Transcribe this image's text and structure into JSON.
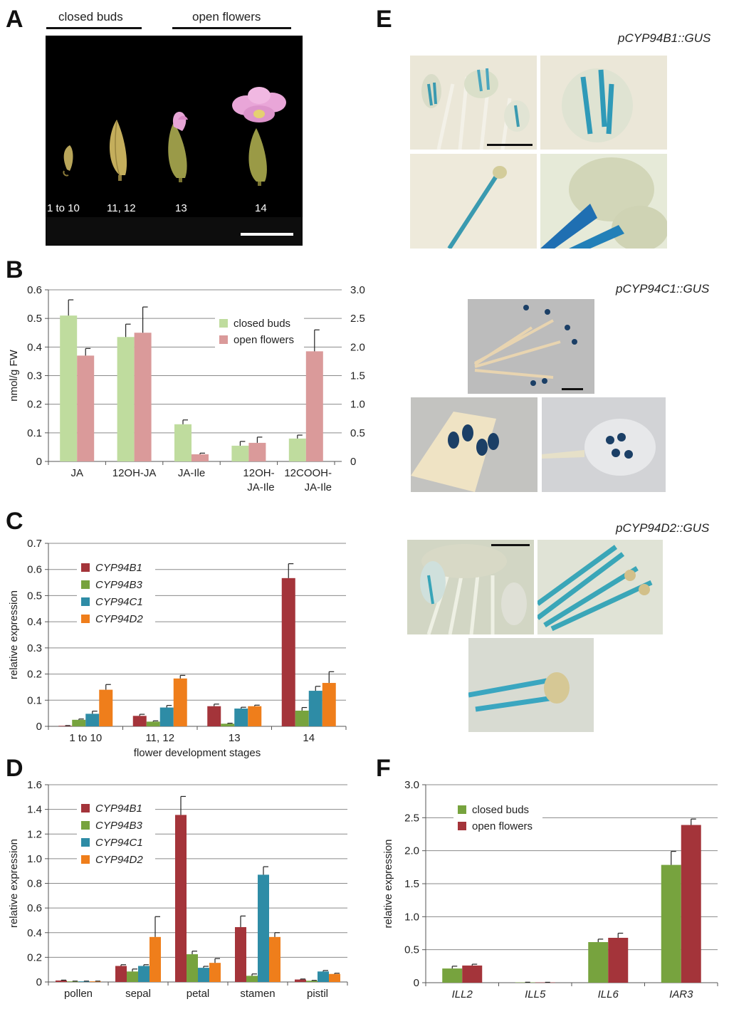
{
  "panels": {
    "a": {
      "letter": "A",
      "group_labels": [
        "closed buds",
        "open flowers"
      ],
      "stage_labels": [
        "1 to 10",
        "11, 12",
        "13",
        "14"
      ]
    },
    "b": {
      "letter": "B"
    },
    "c": {
      "letter": "C"
    },
    "d": {
      "letter": "D"
    },
    "e": {
      "letter": "E",
      "labels": [
        "pCYP94B1::GUS",
        "pCYP94C1::GUS",
        "pCYP94D2::GUS"
      ]
    },
    "f": {
      "letter": "F"
    }
  },
  "colors": {
    "closed_buds": "#bfdc9e",
    "open_flowers": "#da9a9a",
    "CYP94B1": "#a4343a",
    "CYP94B3": "#77a33e",
    "CYP94C1": "#2e8ca6",
    "CYP94D2": "#ef7e1b",
    "F_closed": "#77a33e",
    "F_open": "#a4343a"
  },
  "chart_data": [
    {
      "id": "B",
      "type": "bar",
      "categories": [
        "JA",
        "12OH-JA",
        "JA-Ile",
        "12OH-\nJA-Ile",
        "12COOH-\nJA-Ile"
      ],
      "series": [
        {
          "name": "closed buds",
          "values": [
            0.51,
            0.435,
            0.13,
            0.055,
            0.08
          ],
          "errors": [
            0.055,
            0.045,
            0.015,
            0.015,
            0.012
          ]
        },
        {
          "name": "open flowers",
          "values": [
            0.37,
            0.45,
            0.025,
            0.065,
            0.385
          ],
          "errors": [
            0.025,
            0.09,
            0.004,
            0.02,
            0.075
          ]
        }
      ],
      "ylabel": "nmol/g FW",
      "ylim": [
        0,
        0.6
      ],
      "yticks": [
        "0",
        "0.1",
        "0.2",
        "0.3",
        "0.4",
        "0.5",
        "0.6"
      ],
      "y2lim": [
        0,
        3.0
      ],
      "y2ticks": [
        "0",
        "0.5",
        "1.0",
        "1.5",
        "2.0",
        "2.5",
        "3.0"
      ],
      "secondary_axis_categories": [
        "12COOH-\nJA-Ile"
      ],
      "legend": "top-right",
      "grid": true
    },
    {
      "id": "C",
      "type": "bar",
      "categories": [
        "1 to 10",
        "11, 12",
        "13",
        "14"
      ],
      "series": [
        {
          "name": "CYP94B1",
          "values": [
            0.002,
            0.04,
            0.077,
            0.567
          ],
          "errors": [
            0.001,
            0.006,
            0.008,
            0.055
          ]
        },
        {
          "name": "CYP94B3",
          "values": [
            0.025,
            0.018,
            0.01,
            0.06
          ],
          "errors": [
            0.003,
            0.003,
            0.002,
            0.012
          ]
        },
        {
          "name": "CYP94C1",
          "values": [
            0.048,
            0.072,
            0.068,
            0.136
          ],
          "errors": [
            0.01,
            0.008,
            0.005,
            0.017
          ]
        },
        {
          "name": "CYP94D2",
          "values": [
            0.14,
            0.183,
            0.077,
            0.166
          ],
          "errors": [
            0.02,
            0.012,
            0.004,
            0.043
          ]
        }
      ],
      "xlabel": "flower development stages",
      "ylabel": "relative expression",
      "ylim": [
        0,
        0.7
      ],
      "yticks": [
        "0",
        "0.1",
        "0.2",
        "0.3",
        "0.4",
        "0.5",
        "0.6",
        "0.7"
      ],
      "legend": "top-left",
      "grid": true
    },
    {
      "id": "D",
      "type": "bar",
      "categories": [
        "pollen",
        "sepal",
        "petal",
        "stamen",
        "pistil"
      ],
      "series": [
        {
          "name": "CYP94B1",
          "values": [
            0.012,
            0.13,
            1.355,
            0.445,
            0.02
          ],
          "errors": [
            0.003,
            0.01,
            0.15,
            0.09,
            0.004
          ]
        },
        {
          "name": "CYP94B3",
          "values": [
            0.005,
            0.085,
            0.225,
            0.05,
            0.01
          ],
          "errors": [
            0.002,
            0.02,
            0.025,
            0.015,
            0.003
          ]
        },
        {
          "name": "CYP94C1",
          "values": [
            0.005,
            0.13,
            0.115,
            0.87,
            0.085
          ],
          "errors": [
            0.002,
            0.01,
            0.012,
            0.065,
            0.008
          ]
        },
        {
          "name": "CYP94D2",
          "values": [
            0.005,
            0.365,
            0.155,
            0.365,
            0.065
          ],
          "errors": [
            0.002,
            0.165,
            0.035,
            0.035,
            0.006
          ]
        }
      ],
      "ylabel": "relative expression",
      "ylim": [
        0,
        1.6
      ],
      "yticks": [
        "0",
        "0.2",
        "0.4",
        "0.6",
        "0.8",
        "1.0",
        "1.2",
        "1.4",
        "1.6"
      ],
      "legend": "top-left",
      "grid": true
    },
    {
      "id": "F",
      "type": "bar",
      "categories": [
        "ILL2",
        "ILL5",
        "ILL6",
        "IAR3"
      ],
      "series": [
        {
          "name": "closed buds",
          "values": [
            0.215,
            0.005,
            0.615,
            1.785
          ],
          "errors": [
            0.035,
            0.002,
            0.045,
            0.205
          ]
        },
        {
          "name": "open flowers",
          "values": [
            0.26,
            0.004,
            0.68,
            2.39
          ],
          "errors": [
            0.02,
            0.002,
            0.07,
            0.09
          ]
        }
      ],
      "ylabel": "relative expression",
      "ylim": [
        0,
        3.0
      ],
      "yticks": [
        "0",
        "0.5",
        "1.0",
        "1.5",
        "2.0",
        "2.5",
        "3.0"
      ],
      "legend": "top-left",
      "grid": true
    }
  ]
}
